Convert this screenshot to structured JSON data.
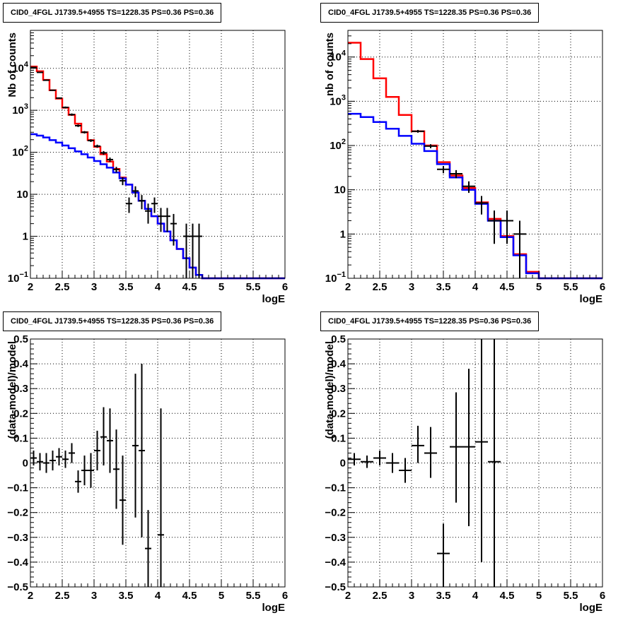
{
  "chart_data": [
    {
      "panel": "top-left",
      "type": "line",
      "title": "CID0_4FGL J1739.5+4955 TS=1228.35 PS=0.36 PS=0.36",
      "xlabel": "logE",
      "ylabel": "Nb of counts",
      "xlim": [
        2,
        6
      ],
      "ylim": [
        0.1,
        80000
      ],
      "yscale": "log",
      "x_ticks": [
        "2",
        "2.5",
        "3",
        "3.5",
        "4",
        "4.5",
        "5",
        "5.5",
        "6"
      ],
      "y_ticks": [
        {
          "v": 0.1,
          "label": "10",
          "exp": "−1"
        },
        {
          "v": 1,
          "label": "1",
          "exp": ""
        },
        {
          "v": 10,
          "label": "10",
          "exp": ""
        },
        {
          "v": 100,
          "label": "10",
          "exp": "2"
        },
        {
          "v": 1000,
          "label": "10",
          "exp": "3"
        },
        {
          "v": 10000,
          "label": "10",
          "exp": "4"
        }
      ],
      "grid": true,
      "bin_edges": [
        2.0,
        2.1,
        2.2,
        2.3,
        2.4,
        2.5,
        2.6,
        2.7,
        2.8,
        2.9,
        3.0,
        3.1,
        3.2,
        3.3,
        3.4,
        3.5,
        3.6,
        3.7,
        3.8,
        3.9,
        4.0,
        4.1,
        4.2,
        4.3,
        4.4,
        4.5,
        4.6,
        4.7,
        4.8,
        4.9,
        5.0,
        5.1,
        5.2,
        5.3,
        5.4,
        5.5,
        5.6,
        5.7,
        5.8,
        5.9,
        6.0
      ],
      "series": [
        {
          "color": "#ff0000",
          "style": "hist",
          "values": [
            11000,
            8500,
            5300,
            3000,
            1900,
            1150,
            780,
            480,
            300,
            195,
            135,
            90,
            60,
            40,
            25,
            17,
            11,
            7,
            4.5,
            3,
            2,
            1.3,
            0.8,
            0.5,
            0.3,
            0.18,
            0.12,
            0.1,
            0.1,
            0.1,
            0.1,
            0.1,
            0.1,
            0.1,
            0.1,
            0.1,
            0.1,
            0.1,
            0.1,
            0.1
          ]
        },
        {
          "color": "#0000ff",
          "style": "hist",
          "values": [
            270,
            250,
            225,
            195,
            170,
            145,
            125,
            105,
            90,
            75,
            62,
            52,
            43,
            33,
            24,
            17,
            11,
            7,
            4.5,
            3,
            2,
            1.3,
            0.8,
            0.5,
            0.3,
            0.18,
            0.12,
            0.1,
            0.1,
            0.1,
            0.1,
            0.1,
            0.1,
            0.1,
            0.1,
            0.1,
            0.1,
            0.1,
            0.1,
            0.1
          ]
        }
      ],
      "points": [
        {
          "x": 2.05,
          "y": 10500,
          "lo": 10300,
          "hi": 10700
        },
        {
          "x": 2.15,
          "y": 8000,
          "lo": 7800,
          "hi": 8200
        },
        {
          "x": 2.25,
          "y": 5200,
          "lo": 5050,
          "hi": 5350
        },
        {
          "x": 2.35,
          "y": 3000,
          "lo": 2900,
          "hi": 3100
        },
        {
          "x": 2.45,
          "y": 1950,
          "lo": 1870,
          "hi": 2030
        },
        {
          "x": 2.55,
          "y": 1170,
          "lo": 1110,
          "hi": 1230
        },
        {
          "x": 2.65,
          "y": 790,
          "lo": 740,
          "hi": 840
        },
        {
          "x": 2.75,
          "y": 430,
          "lo": 400,
          "hi": 460
        },
        {
          "x": 2.85,
          "y": 300,
          "lo": 280,
          "hi": 320
        },
        {
          "x": 2.95,
          "y": 190,
          "lo": 176,
          "hi": 204
        },
        {
          "x": 3.05,
          "y": 140,
          "lo": 128,
          "hi": 152
        },
        {
          "x": 3.15,
          "y": 97,
          "lo": 87,
          "hi": 107
        },
        {
          "x": 3.25,
          "y": 67,
          "lo": 59,
          "hi": 75
        },
        {
          "x": 3.35,
          "y": 39,
          "lo": 33,
          "hi": 45
        },
        {
          "x": 3.45,
          "y": 21,
          "lo": 16.5,
          "hi": 25.5
        },
        {
          "x": 3.55,
          "y": 6,
          "lo": 3.6,
          "hi": 8.4
        },
        {
          "x": 3.65,
          "y": 12,
          "lo": 8.5,
          "hi": 15.5
        },
        {
          "x": 3.75,
          "y": 7,
          "lo": 4.4,
          "hi": 9.6
        },
        {
          "x": 3.85,
          "y": 4,
          "lo": 2,
          "hi": 6
        },
        {
          "x": 3.95,
          "y": 6,
          "lo": 3.6,
          "hi": 8.4
        },
        {
          "x": 4.05,
          "y": 3,
          "lo": 1.27,
          "hi": 4.73
        },
        {
          "x": 4.15,
          "y": 3,
          "lo": 1.27,
          "hi": 4.73
        },
        {
          "x": 4.25,
          "y": 2,
          "lo": 0.6,
          "hi": 3.4
        },
        {
          "x": 4.45,
          "y": 1,
          "lo": 0.1,
          "hi": 2
        },
        {
          "x": 4.55,
          "y": 1,
          "lo": 0.1,
          "hi": 2
        },
        {
          "x": 4.65,
          "y": 1,
          "lo": 0.1,
          "hi": 2
        }
      ]
    },
    {
      "panel": "top-right",
      "type": "line",
      "title": "CID0_4FGL J1739.5+4955 TS=1228.35 PS=0.36 PS=0.36",
      "xlabel": "logE",
      "ylabel": "nb of counts",
      "xlim": [
        2,
        6
      ],
      "ylim": [
        0.1,
        40000
      ],
      "yscale": "log",
      "x_ticks": [
        "2",
        "2.5",
        "3",
        "3.5",
        "4",
        "4.5",
        "5",
        "5.5",
        "6"
      ],
      "y_ticks": [
        {
          "v": 0.1,
          "label": "10",
          "exp": "−1"
        },
        {
          "v": 1,
          "label": "1",
          "exp": ""
        },
        {
          "v": 10,
          "label": "10",
          "exp": ""
        },
        {
          "v": 100,
          "label": "10",
          "exp": "2"
        },
        {
          "v": 1000,
          "label": "10",
          "exp": "3"
        },
        {
          "v": 10000,
          "label": "10",
          "exp": "4"
        }
      ],
      "grid": true,
      "bin_edges": [
        2.0,
        2.2,
        2.4,
        2.6,
        2.8,
        3.0,
        3.2,
        3.4,
        3.6,
        3.8,
        4.0,
        4.2,
        4.4,
        4.6,
        4.8,
        5.0,
        5.2,
        5.4,
        5.6,
        5.8,
        6.0
      ],
      "series": [
        {
          "color": "#ff0000",
          "style": "hist",
          "values": [
            21000,
            9000,
            3300,
            1250,
            490,
            210,
            100,
            42,
            21,
            11,
            5.2,
            2.2,
            0.9,
            0.35,
            0.14,
            0.1,
            0.1,
            0.1,
            0.1,
            0.1
          ]
        },
        {
          "color": "#0000ff",
          "style": "hist",
          "values": [
            520,
            440,
            340,
            240,
            165,
            110,
            75,
            38,
            19,
            10,
            4.8,
            2.0,
            0.85,
            0.33,
            0.13,
            0.1,
            0.1,
            0.1,
            0.1,
            0.1
          ]
        }
      ],
      "points": [
        {
          "x": 3.1,
          "y": 210,
          "lo": 195,
          "hi": 225
        },
        {
          "x": 3.3,
          "y": 97,
          "lo": 87,
          "hi": 107
        },
        {
          "x": 3.5,
          "y": 29,
          "lo": 23.6,
          "hi": 34.4
        },
        {
          "x": 3.7,
          "y": 23,
          "lo": 18.2,
          "hi": 27.8
        },
        {
          "x": 3.9,
          "y": 12,
          "lo": 8.5,
          "hi": 15.5
        },
        {
          "x": 4.1,
          "y": 5,
          "lo": 2.76,
          "hi": 7.24
        },
        {
          "x": 4.3,
          "y": 2,
          "lo": 0.6,
          "hi": 3.4
        },
        {
          "x": 4.5,
          "y": 2,
          "lo": 0.6,
          "hi": 3.4
        },
        {
          "x": 4.7,
          "y": 1,
          "lo": 0.1,
          "hi": 2
        }
      ]
    },
    {
      "panel": "bottom-left",
      "type": "scatter",
      "title": "CID0_4FGL J1739.5+4955 TS=1228.35 PS=0.36 PS=0.36",
      "xlabel": "logE",
      "ylabel": "(data-model)/model",
      "xlim": [
        2,
        6
      ],
      "ylim": [
        -0.5,
        0.5
      ],
      "yscale": "linear",
      "x_ticks": [
        "2",
        "2.5",
        "3",
        "3.5",
        "4",
        "4.5",
        "5",
        "5.5",
        "6"
      ],
      "y_ticks": [
        {
          "v": -0.5,
          "label": "−0.5"
        },
        {
          "v": -0.4,
          "label": "−0.4"
        },
        {
          "v": -0.3,
          "label": "−0.3"
        },
        {
          "v": -0.2,
          "label": "−0.2"
        },
        {
          "v": -0.1,
          "label": "−0.1"
        },
        {
          "v": 0,
          "label": "0"
        },
        {
          "v": 0.1,
          "label": "0.1"
        },
        {
          "v": 0.2,
          "label": "0.2"
        },
        {
          "v": 0.3,
          "label": "0.3"
        },
        {
          "v": 0.4,
          "label": "0.4"
        },
        {
          "v": 0.5,
          "label": "0.5"
        }
      ],
      "grid": true,
      "points": [
        {
          "x": 2.05,
          "y": 0.02,
          "lo": -0.01,
          "hi": 0.05,
          "xw": 0.05
        },
        {
          "x": 2.15,
          "y": 0.005,
          "lo": -0.03,
          "hi": 0.04,
          "xw": 0.05
        },
        {
          "x": 2.25,
          "y": 0.0,
          "lo": -0.04,
          "hi": 0.04,
          "xw": 0.05
        },
        {
          "x": 2.35,
          "y": 0.01,
          "lo": -0.03,
          "hi": 0.05,
          "xw": 0.05
        },
        {
          "x": 2.45,
          "y": 0.025,
          "lo": -0.01,
          "hi": 0.06,
          "xw": 0.05
        },
        {
          "x": 2.55,
          "y": 0.015,
          "lo": -0.02,
          "hi": 0.05,
          "xw": 0.05
        },
        {
          "x": 2.65,
          "y": 0.04,
          "lo": 0.0,
          "hi": 0.08,
          "xw": 0.05
        },
        {
          "x": 2.75,
          "y": -0.075,
          "lo": -0.12,
          "hi": -0.03,
          "xw": 0.05
        },
        {
          "x": 2.85,
          "y": -0.03,
          "lo": -0.09,
          "hi": 0.03,
          "xw": 0.05
        },
        {
          "x": 2.95,
          "y": -0.03,
          "lo": -0.1,
          "hi": 0.04,
          "xw": 0.05
        },
        {
          "x": 3.05,
          "y": 0.05,
          "lo": -0.03,
          "hi": 0.13,
          "xw": 0.05
        },
        {
          "x": 3.15,
          "y": 0.105,
          "lo": -0.01,
          "hi": 0.225,
          "xw": 0.05
        },
        {
          "x": 3.25,
          "y": 0.09,
          "lo": -0.04,
          "hi": 0.22,
          "xw": 0.05
        },
        {
          "x": 3.35,
          "y": -0.025,
          "lo": -0.185,
          "hi": 0.135,
          "xw": 0.05
        },
        {
          "x": 3.45,
          "y": -0.15,
          "lo": -0.33,
          "hi": 0.03,
          "xw": 0.05
        },
        {
          "x": 3.65,
          "y": 0.07,
          "lo": -0.22,
          "hi": 0.36,
          "xw": 0.05
        },
        {
          "x": 3.75,
          "y": 0.05,
          "lo": -0.3,
          "hi": 0.4,
          "xw": 0.05
        },
        {
          "x": 3.85,
          "y": -0.345,
          "lo": -0.5,
          "hi": -0.19,
          "xw": 0.05
        },
        {
          "x": 4.05,
          "y": -0.29,
          "lo": -0.5,
          "hi": 0.22,
          "xw": 0.05
        }
      ]
    },
    {
      "panel": "bottom-right",
      "type": "scatter",
      "title": "CID0_4FGL J1739.5+4955 TS=1228.35 PS=0.36 PS=0.36",
      "xlabel": "logE",
      "ylabel": "(data-model)/model",
      "xlim": [
        2,
        6
      ],
      "ylim": [
        -0.5,
        0.5
      ],
      "yscale": "linear",
      "x_ticks": [
        "2",
        "2.5",
        "3",
        "3.5",
        "4",
        "4.5",
        "5",
        "5.5",
        "6"
      ],
      "y_ticks": [
        {
          "v": -0.5,
          "label": "−0.5"
        },
        {
          "v": -0.4,
          "label": "−0.4"
        },
        {
          "v": -0.3,
          "label": "−0.3"
        },
        {
          "v": -0.2,
          "label": "−0.2"
        },
        {
          "v": -0.1,
          "label": "−0.1"
        },
        {
          "v": 0,
          "label": "0"
        },
        {
          "v": 0.1,
          "label": "0.1"
        },
        {
          "v": 0.2,
          "label": "0.2"
        },
        {
          "v": 0.3,
          "label": "0.3"
        },
        {
          "v": 0.4,
          "label": "0.4"
        },
        {
          "v": 0.5,
          "label": "0.5"
        }
      ],
      "grid": true,
      "points": [
        {
          "x": 2.1,
          "y": 0.015,
          "lo": -0.01,
          "hi": 0.04,
          "xw": 0.1
        },
        {
          "x": 2.3,
          "y": 0.005,
          "lo": -0.02,
          "hi": 0.03,
          "xw": 0.1
        },
        {
          "x": 2.5,
          "y": 0.02,
          "lo": -0.01,
          "hi": 0.05,
          "xw": 0.1
        },
        {
          "x": 2.7,
          "y": 0.0,
          "lo": -0.04,
          "hi": 0.04,
          "xw": 0.1
        },
        {
          "x": 2.9,
          "y": -0.03,
          "lo": -0.08,
          "hi": 0.02,
          "xw": 0.1
        },
        {
          "x": 3.1,
          "y": 0.07,
          "lo": 0.0,
          "hi": 0.15,
          "xw": 0.1
        },
        {
          "x": 3.3,
          "y": 0.04,
          "lo": -0.06,
          "hi": 0.145,
          "xw": 0.1
        },
        {
          "x": 3.5,
          "y": -0.365,
          "lo": -0.5,
          "hi": -0.245,
          "xw": 0.1
        },
        {
          "x": 3.7,
          "y": 0.065,
          "lo": -0.16,
          "hi": 0.285,
          "xw": 0.1
        },
        {
          "x": 3.9,
          "y": 0.065,
          "lo": -0.255,
          "hi": 0.38,
          "xw": 0.1
        },
        {
          "x": 4.1,
          "y": 0.085,
          "lo": -0.4,
          "hi": 0.5,
          "xw": 0.1
        },
        {
          "x": 4.3,
          "y": 0.005,
          "lo": -0.5,
          "hi": 0.5,
          "xw": 0.1
        }
      ]
    }
  ]
}
